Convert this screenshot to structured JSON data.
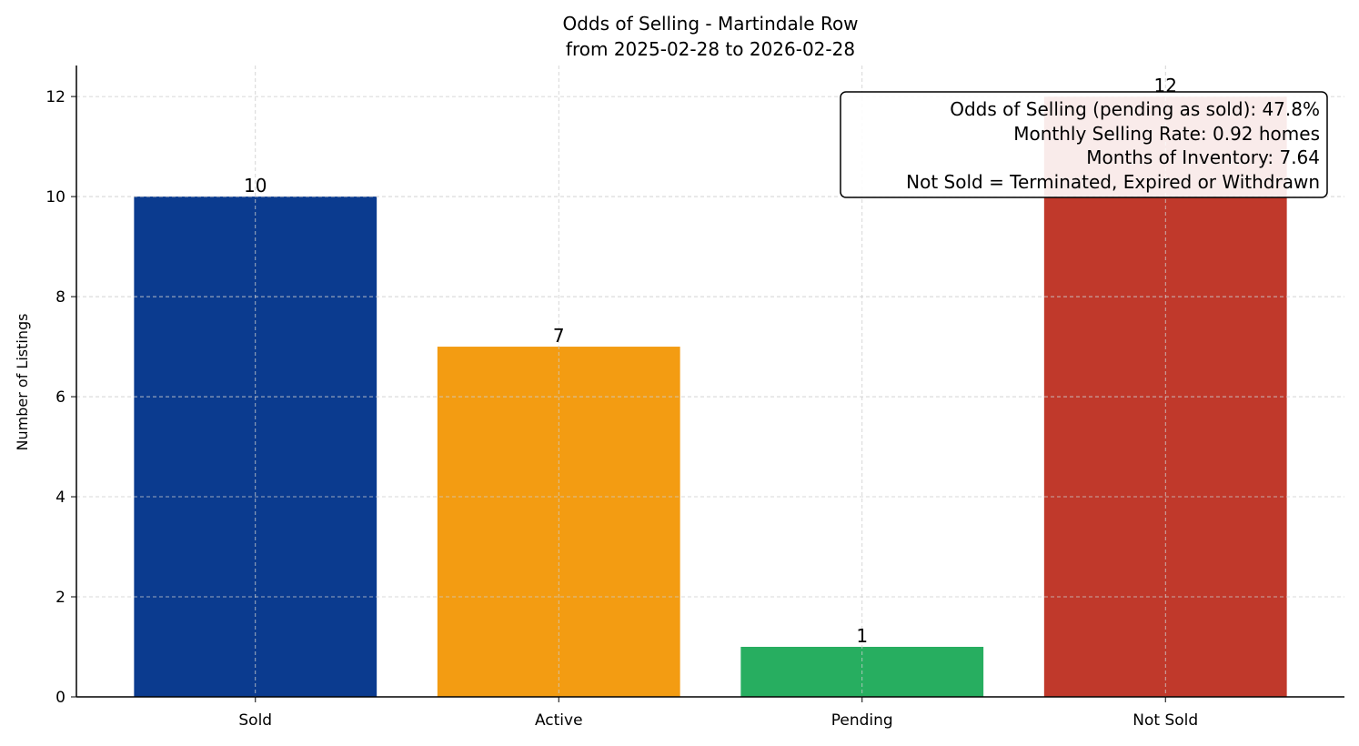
{
  "chart_data": {
    "type": "bar",
    "title": "Odds of Selling - Martindale Row",
    "subtitle": "from 2025-02-28 to 2026-02-28",
    "xlabel": "",
    "ylabel": "Number of Listings",
    "categories": [
      "Sold",
      "Active",
      "Pending",
      "Not Sold"
    ],
    "values": [
      10,
      7,
      1,
      12
    ],
    "data_labels": [
      "10",
      "7",
      "1",
      "12"
    ],
    "colors": [
      "#0b3b8f",
      "#f39c12",
      "#27ae60",
      "#c0392b"
    ],
    "ylim": [
      0,
      12.62
    ],
    "yticks": [
      0,
      2,
      4,
      6,
      8,
      10,
      12
    ],
    "grid": true,
    "annotation": {
      "placement": "top-right",
      "lines": [
        "Odds of Selling (pending as sold): 47.8%",
        "Monthly Selling Rate: 0.92 homes",
        "Months of Inventory: 7.64",
        "Not Sold = Terminated, Expired or Withdrawn"
      ]
    }
  }
}
